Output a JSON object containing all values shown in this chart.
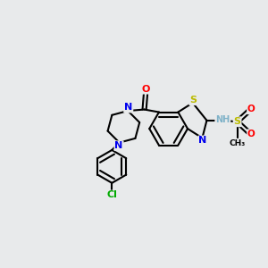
{
  "bg_color": "#e8eaeb",
  "atom_colors": {
    "C": "#000000",
    "N": "#0000ee",
    "O": "#ff0000",
    "S": "#bbbb00",
    "Cl": "#00aa00",
    "H": "#7fb2c8"
  },
  "figsize": [
    3.0,
    3.0
  ],
  "dpi": 100
}
